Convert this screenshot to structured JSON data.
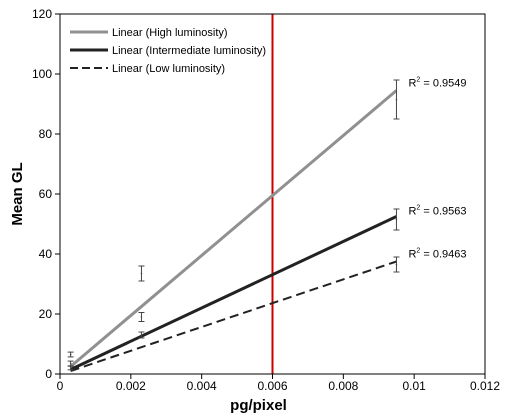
{
  "chart_data": {
    "type": "line",
    "xlabel": "pg/pixel",
    "ylabel": "Mean GL",
    "xlim": [
      0,
      0.012
    ],
    "ylim": [
      0,
      120
    ],
    "xticks": [
      0,
      0.002,
      0.004,
      0.006,
      0.008,
      0.01,
      0.012
    ],
    "xtick_labels": [
      "0",
      "0.002",
      "0.004",
      "0.006",
      "0.008",
      "0.01",
      "0.012"
    ],
    "yticks": [
      0,
      20,
      40,
      60,
      80,
      100,
      120
    ],
    "ytick_labels": [
      "0",
      "20",
      "40",
      "60",
      "80",
      "100",
      "120"
    ],
    "grid": false,
    "legend_position": "top-left",
    "series": [
      {
        "name": "Linear (High luminosity)",
        "color": "#909090",
        "dash": "solid",
        "line": [
          [
            0.0003,
            2.5
          ],
          [
            0.0095,
            94.5
          ]
        ],
        "points": [
          {
            "x": 0.0003,
            "y": 6.5,
            "err": 0.8
          },
          {
            "x": 0.0023,
            "y": 33.5,
            "err": 2.5
          },
          {
            "x": 0.0095,
            "y": 91.5,
            "err": 6.5
          }
        ],
        "r2_label": "R",
        "r2_exp": "2",
        "r2_value": " = 0.9549"
      },
      {
        "name": "Linear (Intermediate luminosity)",
        "color": "#222222",
        "dash": "solid",
        "line": [
          [
            0.0003,
            1.5
          ],
          [
            0.0095,
            52.5
          ]
        ],
        "points": [
          {
            "x": 0.0003,
            "y": 3.5,
            "err": 0.8
          },
          {
            "x": 0.0023,
            "y": 19.0,
            "err": 1.5
          },
          {
            "x": 0.0095,
            "y": 51.5,
            "err": 3.5
          }
        ],
        "r2_label": "R",
        "r2_exp": "2",
        "r2_value": " = 0.9563"
      },
      {
        "name": "Linear (Low luminosity)",
        "color": "#222222",
        "dash": "dashed",
        "line": [
          [
            0.0003,
            1.0
          ],
          [
            0.0095,
            37.5
          ]
        ],
        "points": [
          {
            "x": 0.0003,
            "y": 2.0,
            "err": 0.6
          },
          {
            "x": 0.0023,
            "y": 13.0,
            "err": 1.0
          },
          {
            "x": 0.0095,
            "y": 36.5,
            "err": 2.5
          }
        ],
        "r2_label": "R",
        "r2_exp": "2",
        "r2_value": " = 0.9463"
      }
    ],
    "annotations": [
      {
        "type": "vline",
        "x": 0.006,
        "color": "#cc0000"
      }
    ]
  }
}
